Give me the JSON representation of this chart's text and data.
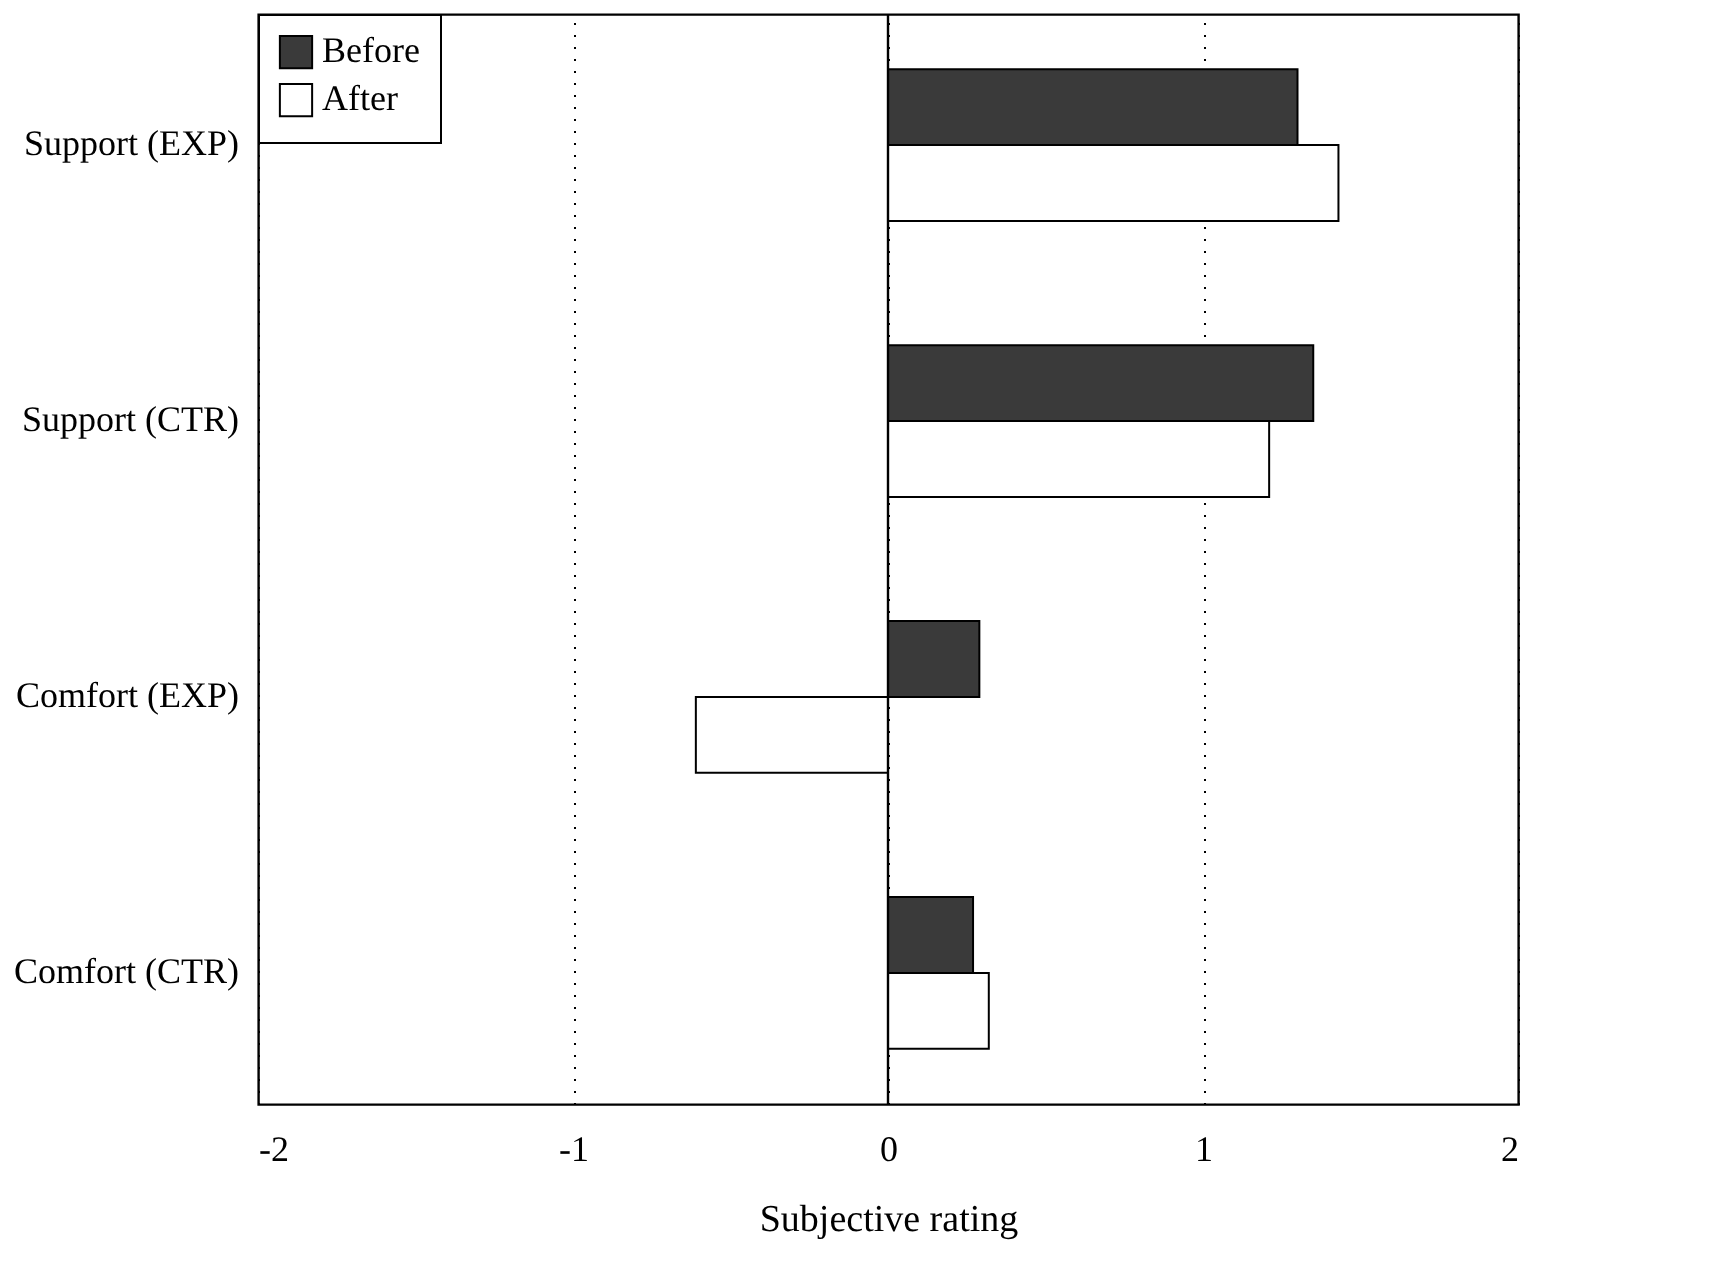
{
  "chart_data": {
    "type": "bar",
    "orientation": "horizontal",
    "xlabel": "Subjective rating",
    "categories": [
      "Support (EXP)",
      "Support (CTR)",
      "Comfort (EXP)",
      "Comfort (CTR)"
    ],
    "series": [
      {
        "name": "Before",
        "color": "#3a3a3a",
        "values": [
          1.3,
          1.35,
          0.29,
          0.27
        ]
      },
      {
        "name": "After",
        "color": "#ffffff",
        "values": [
          1.43,
          1.21,
          -0.61,
          0.32
        ]
      }
    ],
    "xlim": [
      -2,
      2
    ],
    "xticks": [
      -2,
      -1,
      0,
      1,
      2
    ],
    "grid": "x",
    "legend": "top left",
    "ref_lines": [
      {
        "axis": "x",
        "value": 0,
        "color": "#000000",
        "line_style": "solid"
      }
    ]
  }
}
